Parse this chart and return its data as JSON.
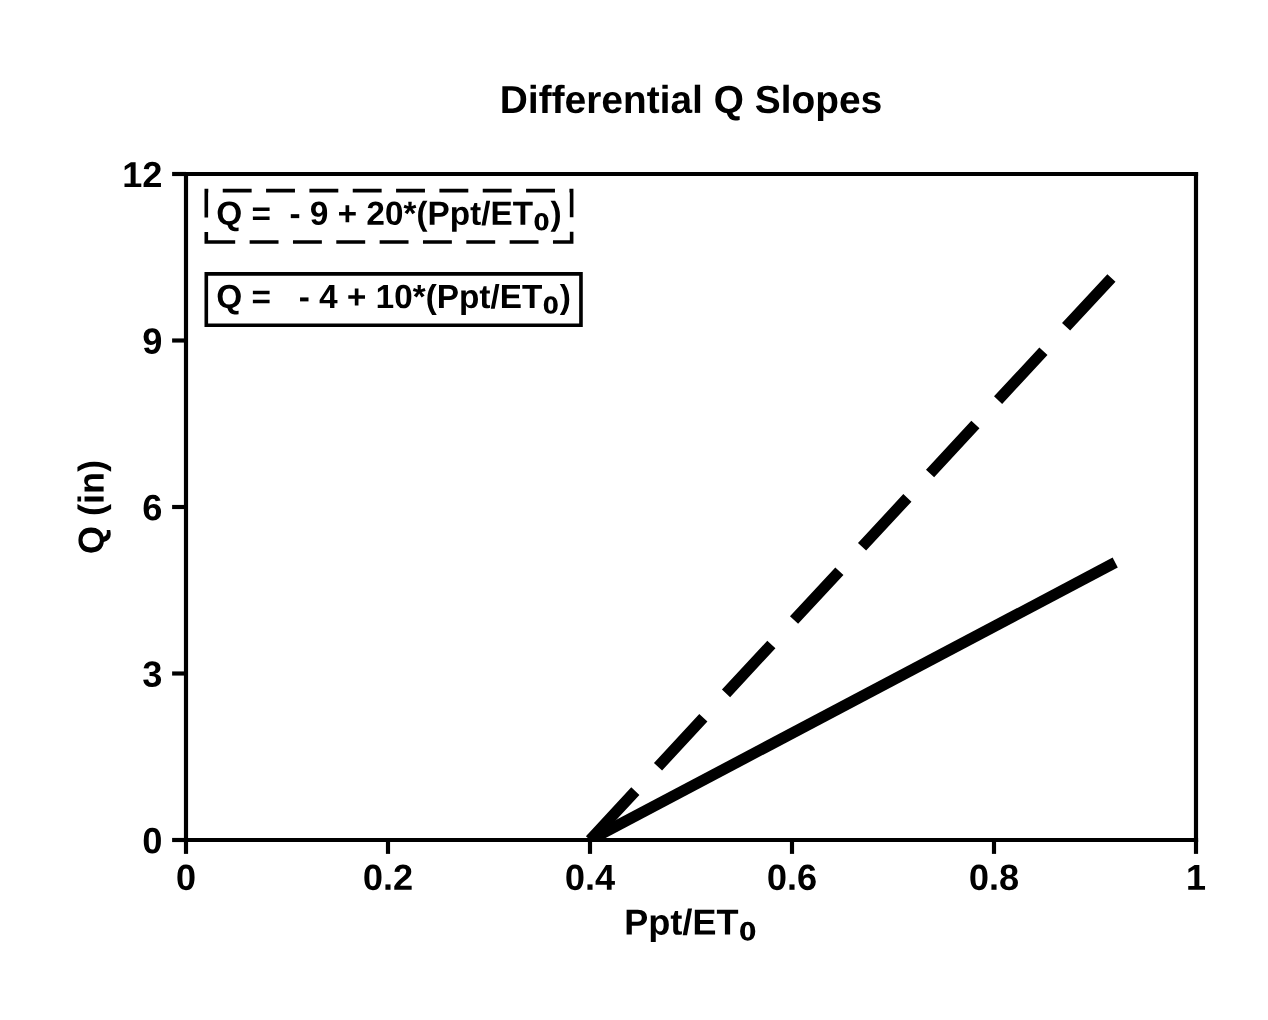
{
  "chart_data": {
    "type": "line",
    "title": "Differential Q Slopes",
    "xlabel": "Ppt/ET$_{0}$",
    "ylabel": "Q (in)",
    "xlim": [
      0,
      1
    ],
    "xticks": [
      0,
      0.2,
      0.4,
      0.6,
      0.8,
      1
    ],
    "ylim": [
      0,
      12
    ],
    "yticks": [
      0,
      3,
      6,
      9,
      12
    ],
    "grid": false,
    "legend": "top left",
    "marker": "none",
    "x": [
      0.4,
      0.92
    ],
    "series": [
      {
        "name": "Q =  - 9 + 20*(Ppt/ET$_{0}$)",
        "color": "#000000",
        "line_style": "dashed",
        "values": [
          0,
          10.2
        ]
      },
      {
        "name": "Q =   - 4 + 10*(Ppt/ET$_{0}$)",
        "color": "#000000",
        "line_style": "solid",
        "values": [
          0,
          5.0
        ]
      }
    ]
  }
}
